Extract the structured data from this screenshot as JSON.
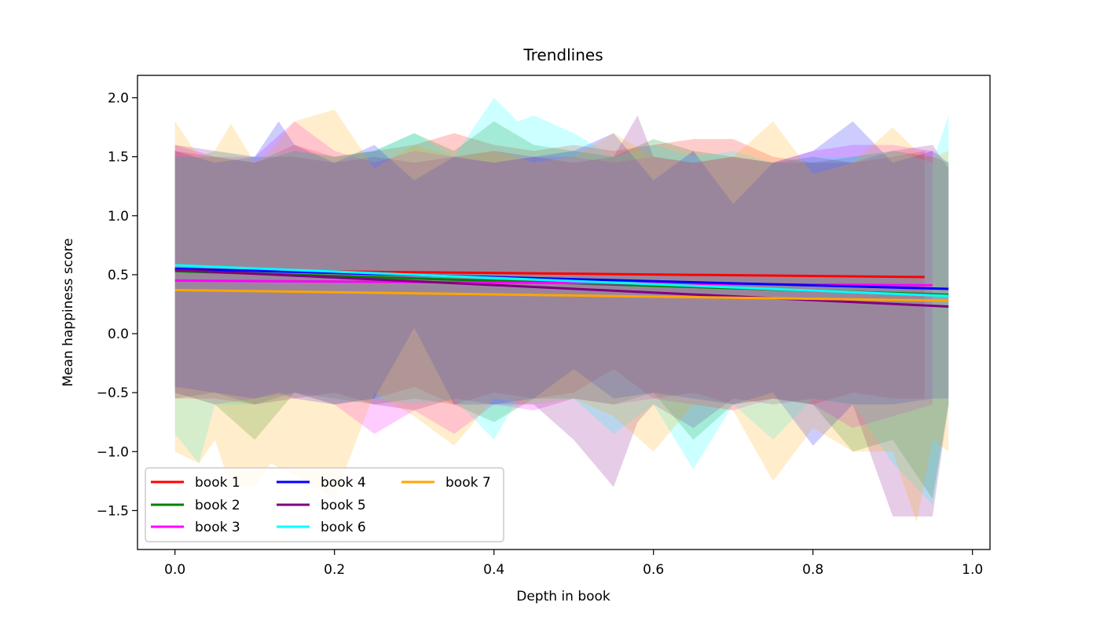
{
  "chart_data": {
    "type": "line",
    "title": "Trendlines",
    "xlabel": "Depth in book",
    "ylabel": "Mean happiness score",
    "xlim": [
      -0.047,
      1.022
    ],
    "ylim": [
      -1.83,
      2.19
    ],
    "xticks": [
      0.0,
      0.2,
      0.4,
      0.6,
      0.8,
      1.0
    ],
    "xtick_labels": [
      "0.0",
      "0.2",
      "0.4",
      "0.6",
      "0.8",
      "1.0"
    ],
    "yticks": [
      -1.5,
      -1.0,
      -0.5,
      0.0,
      0.5,
      1.0,
      1.5,
      2.0
    ],
    "ytick_labels": [
      "−1.5",
      "−1.0",
      "−0.5",
      "0.0",
      "0.5",
      "1.0",
      "1.5",
      "2.0"
    ],
    "grid": false,
    "legend": {
      "placement": "lower-left",
      "columns": 3
    },
    "series": [
      {
        "name": "book 1",
        "color": "#ff0000",
        "x": [
          0.0,
          0.94
        ],
        "y": [
          0.54,
          0.48
        ],
        "band": {
          "x": [
            0.0,
            0.05,
            0.1,
            0.15,
            0.2,
            0.25,
            0.3,
            0.35,
            0.4,
            0.45,
            0.5,
            0.55,
            0.6,
            0.65,
            0.7,
            0.75,
            0.8,
            0.85,
            0.9,
            0.94
          ],
          "upper": [
            1.55,
            1.5,
            1.45,
            1.6,
            1.5,
            1.55,
            1.6,
            1.7,
            1.6,
            1.55,
            1.6,
            1.55,
            1.6,
            1.65,
            1.65,
            1.5,
            1.45,
            1.45,
            1.5,
            1.55
          ],
          "lower": [
            -0.55,
            -0.55,
            -0.6,
            -0.5,
            -0.6,
            -0.55,
            -0.45,
            -0.6,
            -0.5,
            -0.55,
            -0.5,
            -0.3,
            -0.55,
            -0.5,
            -0.6,
            -0.55,
            -0.6,
            -0.5,
            -0.55,
            -0.55
          ]
        }
      },
      {
        "name": "book 2",
        "color": "#008000",
        "x": [
          0.0,
          0.97
        ],
        "y": [
          0.53,
          0.33
        ],
        "band": {
          "x": [
            0.0,
            0.05,
            0.1,
            0.15,
            0.2,
            0.25,
            0.3,
            0.35,
            0.4,
            0.45,
            0.5,
            0.55,
            0.6,
            0.65,
            0.7,
            0.75,
            0.8,
            0.85,
            0.9,
            0.95,
            0.97
          ],
          "upper": [
            1.5,
            1.5,
            1.45,
            1.55,
            1.5,
            1.55,
            1.7,
            1.55,
            1.8,
            1.6,
            1.55,
            1.5,
            1.65,
            1.55,
            1.5,
            1.45,
            1.45,
            1.5,
            1.55,
            1.5,
            1.45
          ],
          "lower": [
            -0.5,
            -0.6,
            -0.9,
            -0.5,
            -0.55,
            -0.6,
            -0.55,
            -0.6,
            -0.75,
            -0.55,
            -0.55,
            -0.6,
            -0.5,
            -0.9,
            -0.6,
            -0.55,
            -0.6,
            -1.0,
            -0.9,
            -1.4,
            -0.6
          ]
        }
      },
      {
        "name": "book 3",
        "color": "#ff00ff",
        "x": [
          0.0,
          0.95
        ],
        "y": [
          0.45,
          0.41
        ],
        "band": {
          "x": [
            0.0,
            0.05,
            0.1,
            0.15,
            0.2,
            0.25,
            0.3,
            0.35,
            0.4,
            0.45,
            0.5,
            0.55,
            0.6,
            0.65,
            0.7,
            0.75,
            0.8,
            0.85,
            0.9,
            0.95
          ],
          "upper": [
            1.6,
            1.5,
            1.5,
            1.8,
            1.55,
            1.45,
            1.55,
            1.5,
            1.45,
            1.5,
            1.5,
            1.45,
            1.5,
            1.45,
            1.5,
            1.45,
            1.55,
            1.6,
            1.6,
            1.55
          ],
          "lower": [
            -0.5,
            -0.6,
            -0.55,
            -0.5,
            -0.6,
            -0.85,
            -0.65,
            -0.85,
            -0.6,
            -0.65,
            -0.55,
            -0.6,
            -0.55,
            -0.6,
            -0.65,
            -0.55,
            -0.6,
            -0.8,
            -0.7,
            -0.6
          ]
        }
      },
      {
        "name": "book 4",
        "color": "#0000ff",
        "x": [
          0.0,
          0.97
        ],
        "y": [
          0.55,
          0.38
        ],
        "band": {
          "x": [
            0.0,
            0.05,
            0.1,
            0.13,
            0.15,
            0.2,
            0.25,
            0.3,
            0.35,
            0.4,
            0.45,
            0.5,
            0.55,
            0.6,
            0.65,
            0.7,
            0.75,
            0.8,
            0.85,
            0.9,
            0.95,
            0.97
          ],
          "upper": [
            1.55,
            1.45,
            1.5,
            1.8,
            1.6,
            1.45,
            1.6,
            1.3,
            1.5,
            1.45,
            1.5,
            1.55,
            1.7,
            1.3,
            1.55,
            1.1,
            1.45,
            1.55,
            1.8,
            1.45,
            1.55,
            1.45
          ],
          "lower": [
            -0.45,
            -0.5,
            -0.55,
            -0.5,
            -0.55,
            -0.6,
            -0.55,
            0.05,
            -0.6,
            -0.6,
            -0.55,
            -0.3,
            -0.55,
            -0.5,
            -0.55,
            -0.6,
            -0.5,
            -0.95,
            -0.6,
            -0.6,
            -0.55,
            -0.55
          ]
        }
      },
      {
        "name": "book 5",
        "color": "#800080",
        "x": [
          0.0,
          0.97
        ],
        "y": [
          0.54,
          0.23
        ],
        "band": {
          "x": [
            0.0,
            0.05,
            0.1,
            0.15,
            0.2,
            0.25,
            0.3,
            0.35,
            0.4,
            0.45,
            0.5,
            0.55,
            0.58,
            0.6,
            0.65,
            0.7,
            0.75,
            0.8,
            0.85,
            0.9,
            0.95,
            0.97
          ],
          "upper": [
            1.6,
            1.55,
            1.5,
            1.5,
            1.45,
            1.5,
            1.45,
            1.5,
            1.55,
            1.5,
            1.45,
            1.5,
            1.85,
            1.5,
            1.45,
            1.5,
            1.45,
            1.5,
            1.45,
            1.55,
            1.6,
            1.4
          ],
          "lower": [
            -0.55,
            -0.5,
            -0.6,
            -0.55,
            -0.5,
            -0.6,
            -0.65,
            -0.55,
            -0.6,
            -0.6,
            -0.9,
            -1.3,
            -0.75,
            -0.6,
            -0.8,
            -0.55,
            -0.6,
            -0.55,
            -0.6,
            -1.55,
            -1.55,
            -0.6
          ]
        }
      },
      {
        "name": "book 6",
        "color": "#00ffff",
        "x": [
          0.0,
          0.97
        ],
        "y": [
          0.58,
          0.32
        ],
        "band": {
          "x": [
            0.0,
            0.03,
            0.05,
            0.1,
            0.15,
            0.2,
            0.25,
            0.3,
            0.35,
            0.4,
            0.43,
            0.45,
            0.5,
            0.55,
            0.6,
            0.65,
            0.7,
            0.75,
            0.8,
            0.85,
            0.9,
            0.95,
            0.97
          ],
          "upper": [
            1.5,
            1.5,
            1.55,
            1.5,
            1.55,
            1.5,
            1.55,
            1.7,
            1.5,
            2.0,
            1.8,
            1.85,
            1.7,
            1.5,
            1.6,
            1.5,
            1.55,
            1.45,
            1.5,
            1.5,
            1.55,
            1.45,
            1.85
          ],
          "lower": [
            -0.85,
            -1.1,
            -0.6,
            -0.6,
            -0.5,
            -0.6,
            -0.55,
            -0.6,
            -0.55,
            -0.9,
            -0.55,
            -0.6,
            -0.55,
            -0.85,
            -0.6,
            -1.15,
            -0.6,
            -0.9,
            -0.55,
            -0.6,
            -1.1,
            -1.45,
            -0.6
          ]
        }
      },
      {
        "name": "book 7",
        "color": "#ffa500",
        "x": [
          0.0,
          0.97
        ],
        "y": [
          0.37,
          0.28
        ],
        "band": {
          "x": [
            0.0,
            0.03,
            0.05,
            0.07,
            0.1,
            0.12,
            0.15,
            0.2,
            0.25,
            0.3,
            0.35,
            0.4,
            0.45,
            0.5,
            0.55,
            0.6,
            0.65,
            0.7,
            0.75,
            0.8,
            0.85,
            0.9,
            0.93,
            0.95,
            0.97
          ],
          "upper": [
            1.8,
            1.5,
            1.55,
            1.78,
            1.45,
            1.55,
            1.8,
            1.9,
            1.4,
            1.6,
            1.5,
            1.55,
            1.45,
            1.5,
            1.7,
            1.5,
            1.45,
            1.5,
            1.8,
            1.35,
            1.45,
            1.75,
            1.55,
            1.5,
            1.55
          ],
          "lower": [
            -1.0,
            -1.1,
            -0.9,
            -1.3,
            -1.3,
            -1.1,
            -1.2,
            -1.4,
            -0.5,
            -0.7,
            -0.95,
            -0.55,
            -0.6,
            -0.55,
            -0.7,
            -1.0,
            -0.6,
            -0.65,
            -1.25,
            -0.8,
            -1.0,
            -1.0,
            -1.6,
            -0.9,
            -1.0
          ]
        }
      }
    ]
  }
}
